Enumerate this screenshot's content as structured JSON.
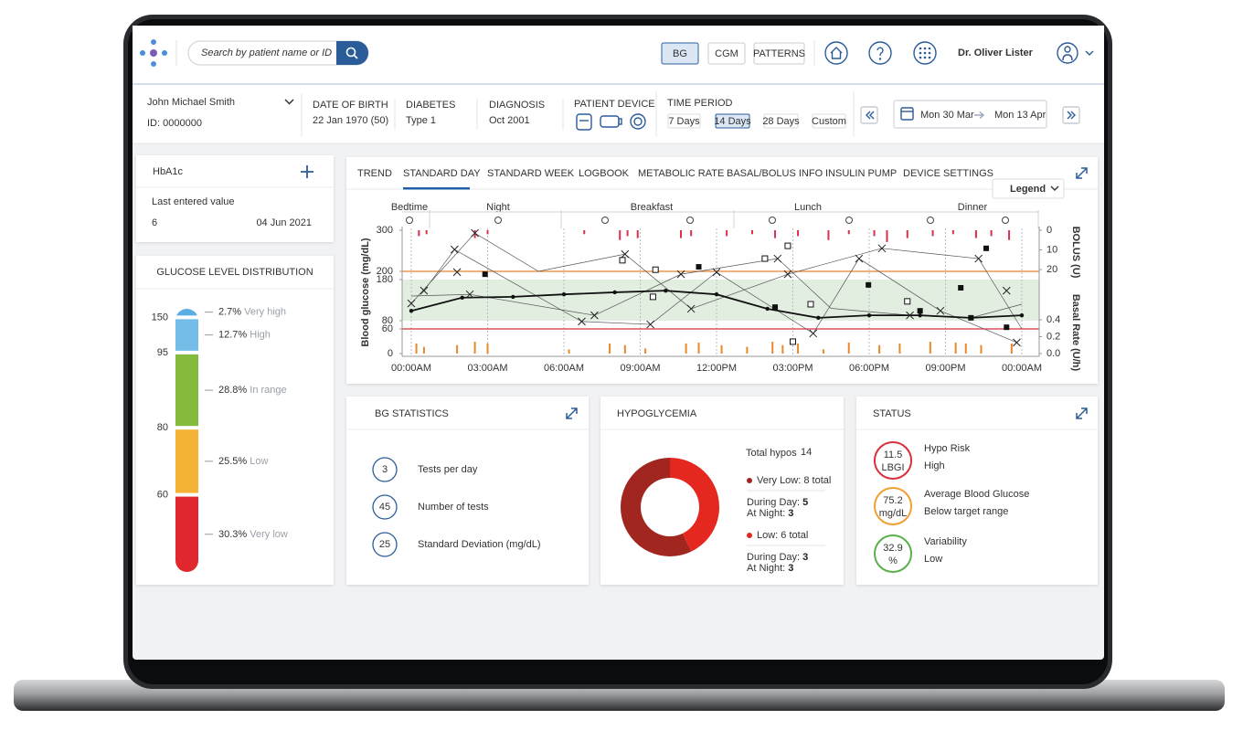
{
  "header": {
    "search_placeholder": "Search by patient name or ID",
    "tabs": [
      "BG",
      "CGM",
      "PATTERNS"
    ],
    "active_tab": 0,
    "user": "Dr. Oliver Lister"
  },
  "patient": {
    "name": "John Michael Smith",
    "id": "ID: 0000000",
    "fields": [
      {
        "label": "DATE OF BIRTH",
        "value": "22 Jan 1970 (50)"
      },
      {
        "label": "DIABETES",
        "value": "Type 1"
      },
      {
        "label": "DIAGNOSIS",
        "value": "Oct 2001"
      }
    ],
    "device_label": "PATIENT DEVICE",
    "time_period_label": "TIME PERIOD",
    "periods": [
      "7 Days",
      "14 Days",
      "28 Days",
      "Custom"
    ],
    "active_period": 1,
    "date_from": "Mon 30 Mar",
    "date_to": "Mon 13 Apr"
  },
  "hba1c": {
    "title": "HbA1c",
    "last_label": "Last entered value",
    "value": 6,
    "date": "04 Jun 2021"
  },
  "distribution": {
    "title": "GLUCOSE LEVEL DISTRIBUTION",
    "thresholds": [
      150,
      95,
      80,
      60
    ],
    "names": [
      "Very high",
      "High",
      "In range",
      "Low",
      "Very low"
    ],
    "values": [
      2.7,
      12.7,
      28.8,
      25.5,
      30.3
    ],
    "value_labels": [
      "2.7%",
      "12.7%",
      "28.8%",
      "25.5%",
      "30.3%"
    ],
    "colors": [
      "#5aaee3",
      "#74bde8",
      "#84bb3c",
      "#f5b335",
      "#e0272d"
    ]
  },
  "standard_day": {
    "type": "scatter",
    "tabs": [
      "TREND",
      "STANDARD DAY",
      "STANDARD WEEK",
      "LOGBOOK",
      "METABOLIC RATE",
      "BASAL/BOLUS INFO",
      "INSULIN PUMP",
      "DEVICE SETTINGS"
    ],
    "active_tab": 1,
    "legend_button": "Legend",
    "periods": [
      "Bedtime",
      "Night",
      "Breakfast",
      "Lunch",
      "Dinner"
    ],
    "ylabel": "Blood glucose (mg/dL)",
    "y2label": "BOLUS (U)",
    "y3label": "Basal Rate (U/h)",
    "xlim": [
      0,
      24
    ],
    "xticks": [
      {
        "value": 0,
        "label": "00:00AM"
      },
      {
        "value": 3,
        "label": "03:00AM"
      },
      {
        "value": 6,
        "label": "06:00AM"
      },
      {
        "value": 9,
        "label": "09:00AM"
      },
      {
        "value": 12,
        "label": "12:00PM"
      },
      {
        "value": 15,
        "label": "03:00PM"
      },
      {
        "value": 18,
        "label": "06:00PM"
      },
      {
        "value": 21,
        "label": "09:00PM"
      },
      {
        "value": 24,
        "label": "00:00AM"
      }
    ],
    "ylim": [
      0,
      300
    ],
    "yticks": [
      0,
      60,
      80,
      180,
      200,
      300
    ],
    "grid": true,
    "hyper_line": {
      "value": 200,
      "color": "#e8822a"
    },
    "hypo_line": {
      "value": 60,
      "color": "#d9303c"
    },
    "target_range": {
      "values": [
        80,
        180
      ],
      "color": "#4e9e4e",
      "fill": "#e2efe0"
    },
    "bolus_lim": [
      0,
      20
    ],
    "bolus_ticks": [
      0,
      10,
      20
    ],
    "basal_lim": [
      0,
      0.4
    ],
    "basal_ticks": [
      0.4,
      0.2,
      {
        "value": 0,
        "label": "0.0"
      }
    ],
    "mean": {
      "x": [
        0,
        2,
        4,
        6,
        8,
        10,
        12,
        14,
        16,
        18,
        20,
        22,
        24
      ],
      "values": [
        104,
        136,
        138,
        144,
        149,
        153,
        144,
        109,
        87,
        93,
        93,
        87,
        93
      ]
    },
    "traces": [
      {
        "x": [
          0,
          2.5,
          5,
          8.4,
          11,
          14.8,
          18.5,
          22.3,
          24
        ],
        "values": [
          122,
          293,
          200,
          242,
          109,
          193,
          256,
          231,
          60
        ]
      },
      {
        "x": [
          0.5,
          1.7,
          6.7,
          9.4,
          12,
          15.8,
          17.6,
          20.8,
          23.8
        ],
        "values": [
          153,
          253,
          78,
          71,
          198,
          49,
          231,
          104,
          27
        ]
      },
      {
        "x": [
          0,
          2.3,
          7.2,
          10.6,
          14.4,
          16.5,
          19.6,
          22,
          24
        ],
        "values": [
          140,
          144,
          93,
          193,
          231,
          110,
          93,
          87,
          120
        ]
      }
    ],
    "crosses": {
      "x": [
        0,
        0.5,
        1.7,
        1.8,
        2.3,
        2.5,
        6.7,
        7.2,
        8.4,
        9.4,
        10.6,
        11,
        12,
        14.4,
        14.8,
        15.8,
        17.6,
        18.5,
        19.6,
        20.8,
        22.3,
        23.4,
        23.8
      ],
      "values": [
        122,
        153,
        253,
        198,
        144,
        293,
        78,
        93,
        242,
        71,
        193,
        109,
        198,
        231,
        193,
        49,
        231,
        256,
        93,
        104,
        231,
        153,
        27
      ]
    },
    "filled_squares": {
      "x": [
        2.9,
        11.3,
        14.3,
        17.97,
        20,
        21.6,
        22,
        22.6,
        23.4
      ],
      "values": [
        193,
        211,
        113,
        167,
        104,
        160,
        87,
        256,
        64
      ]
    },
    "open_squares": {
      "x": [
        8.3,
        9.5,
        9.6,
        13.9,
        14.8,
        15,
        15.7,
        19.5
      ],
      "values": [
        227,
        138,
        204,
        231,
        262,
        29,
        120,
        127
      ]
    },
    "bolus": {
      "color": "#d8304d",
      "x": [
        0.3,
        0.6,
        2.5,
        3.0,
        6.8,
        8.2,
        8.5,
        8.9,
        10.6,
        11.0,
        12.4,
        13.4,
        14.3,
        15.2,
        16.4,
        17.2,
        18.2,
        18.7,
        19.5,
        20.5,
        21.3,
        22.2,
        22.8,
        23.5
      ],
      "values": [
        3,
        2,
        4,
        2,
        2,
        5,
        3,
        4,
        4,
        3,
        3,
        2,
        4,
        3,
        5,
        2,
        3,
        6,
        4,
        3,
        2,
        4,
        3,
        5
      ]
    },
    "basal": {
      "color": "#e8892b",
      "x": [
        0.2,
        0.5,
        1.8,
        2.5,
        3.0,
        6.2,
        7.8,
        8.4,
        9.2,
        10.8,
        11.3,
        12.2,
        13.2,
        14.2,
        14.6,
        15.2,
        16.2,
        17.2,
        18.4,
        19.2,
        20.4,
        21.4,
        21.8,
        22.4,
        23.6
      ],
      "values": [
        0.12,
        0.08,
        0.1,
        0.14,
        0.12,
        0.05,
        0.12,
        0.1,
        0.06,
        0.12,
        0.13,
        0.1,
        0.08,
        0.14,
        0.1,
        0.12,
        0.05,
        0.13,
        0.1,
        0.12,
        0.14,
        0.13,
        0.12,
        0.1,
        0.12
      ]
    }
  },
  "bg_statistics": {
    "title": "BG STATISTICS",
    "items": [
      {
        "value": 3,
        "label": "Tests per day"
      },
      {
        "value": 45,
        "label": "Number of tests"
      },
      {
        "value": 25,
        "label": "Standard Deviation (mg/dL)"
      }
    ]
  },
  "hypoglycemia": {
    "title": "HYPOGLYCEMIA",
    "total_label": "Total hypos",
    "total": 14,
    "day_label": "During Day:",
    "night_label": "At Night:",
    "segments": [
      {
        "label": "Very Low: 8 total",
        "value": 8,
        "day": 5,
        "night": 3,
        "color": "#a1261f"
      },
      {
        "label": "Low: 6 total",
        "value": 6,
        "day": 3,
        "night": 3,
        "color": "#e4281f"
      }
    ]
  },
  "status": {
    "title": "STATUS",
    "items": [
      {
        "value": 11.5,
        "unit": "LBGI",
        "label": "Hypo Risk",
        "status": "High",
        "color": "#d9303c"
      },
      {
        "value": 75.2,
        "unit": "mg/dL",
        "label": "Average Blood Glucose",
        "status": "Below target range",
        "color": "#f0a030"
      },
      {
        "value": 32.9,
        "unit": "%",
        "label": "Variability",
        "status": "Low",
        "color": "#5ab04a"
      }
    ]
  }
}
